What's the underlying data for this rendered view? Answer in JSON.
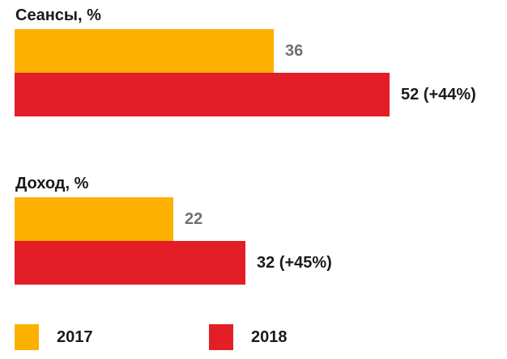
{
  "colors": {
    "2017": "#fcb000",
    "2018": "#e31e26",
    "label_2017": "#707070",
    "label_2018": "#1a1a1a"
  },
  "chart_data": {
    "type": "bar",
    "orientation": "horizontal",
    "grid": false,
    "legend_placement": "bottom",
    "groups": [
      {
        "title": "Сеансы, %",
        "bars": [
          {
            "series": "2017",
            "value": 36,
            "label": "36"
          },
          {
            "series": "2018",
            "value": 52,
            "label": "52 (+44%)"
          }
        ]
      },
      {
        "title": "Доход, %",
        "bars": [
          {
            "series": "2017",
            "value": 22,
            "label": "22"
          },
          {
            "series": "2018",
            "value": 32,
            "label": "32 (+45%)"
          }
        ]
      }
    ],
    "series": [
      {
        "name": "2017",
        "values": [
          36,
          22
        ]
      },
      {
        "name": "2018",
        "values": [
          52,
          32
        ]
      }
    ]
  }
}
